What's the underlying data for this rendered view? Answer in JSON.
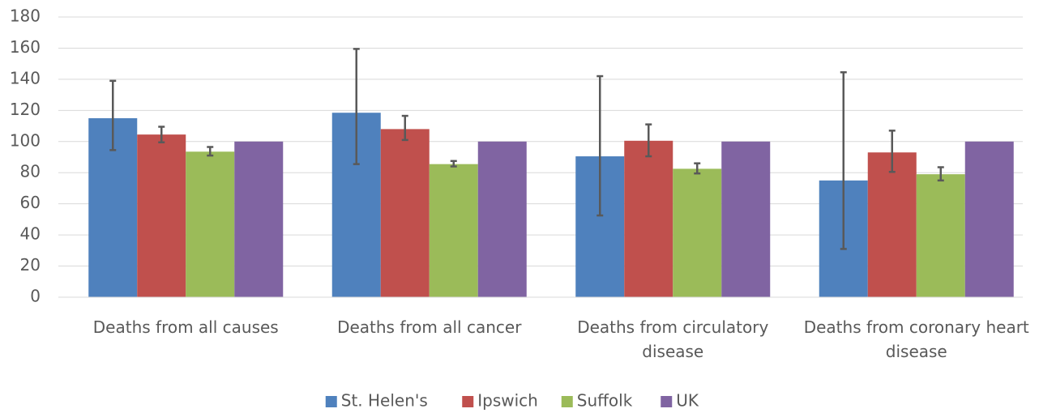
{
  "chart_data": {
    "type": "bar",
    "categories": [
      "Deaths from all causes",
      "Deaths from all cancer",
      "Deaths from circulatory disease",
      "Deaths from coronary heart disease"
    ],
    "series": [
      {
        "name": "St. Helen's",
        "color": "#4f81bd",
        "values": [
          115,
          118.5,
          90.5,
          75
        ],
        "ci_low": [
          94.5,
          85.5,
          52.5,
          31
        ],
        "ci_high": [
          139,
          159.5,
          142,
          144.5
        ]
      },
      {
        "name": "Ipswich",
        "color": "#c0504d",
        "values": [
          104.5,
          108,
          100.5,
          93
        ],
        "ci_low": [
          99.5,
          101,
          90.5,
          80.5
        ],
        "ci_high": [
          109.5,
          116.5,
          111,
          107
        ]
      },
      {
        "name": "Suffolk",
        "color": "#9bbb59",
        "values": [
          93.5,
          85.5,
          82.5,
          79
        ],
        "ci_low": [
          91,
          84,
          79.5,
          75
        ],
        "ci_high": [
          96.5,
          87.5,
          86,
          83.5
        ]
      },
      {
        "name": "UK",
        "color": "#8064a2",
        "values": [
          100,
          100,
          100,
          100
        ],
        "ci_low": [
          null,
          null,
          null,
          null
        ],
        "ci_high": [
          null,
          null,
          null,
          null
        ]
      }
    ],
    "ylim": [
      0,
      180
    ],
    "yticks": [
      0,
      20,
      40,
      60,
      80,
      100,
      120,
      140,
      160,
      180
    ],
    "grid": true,
    "legend": "bottom"
  }
}
